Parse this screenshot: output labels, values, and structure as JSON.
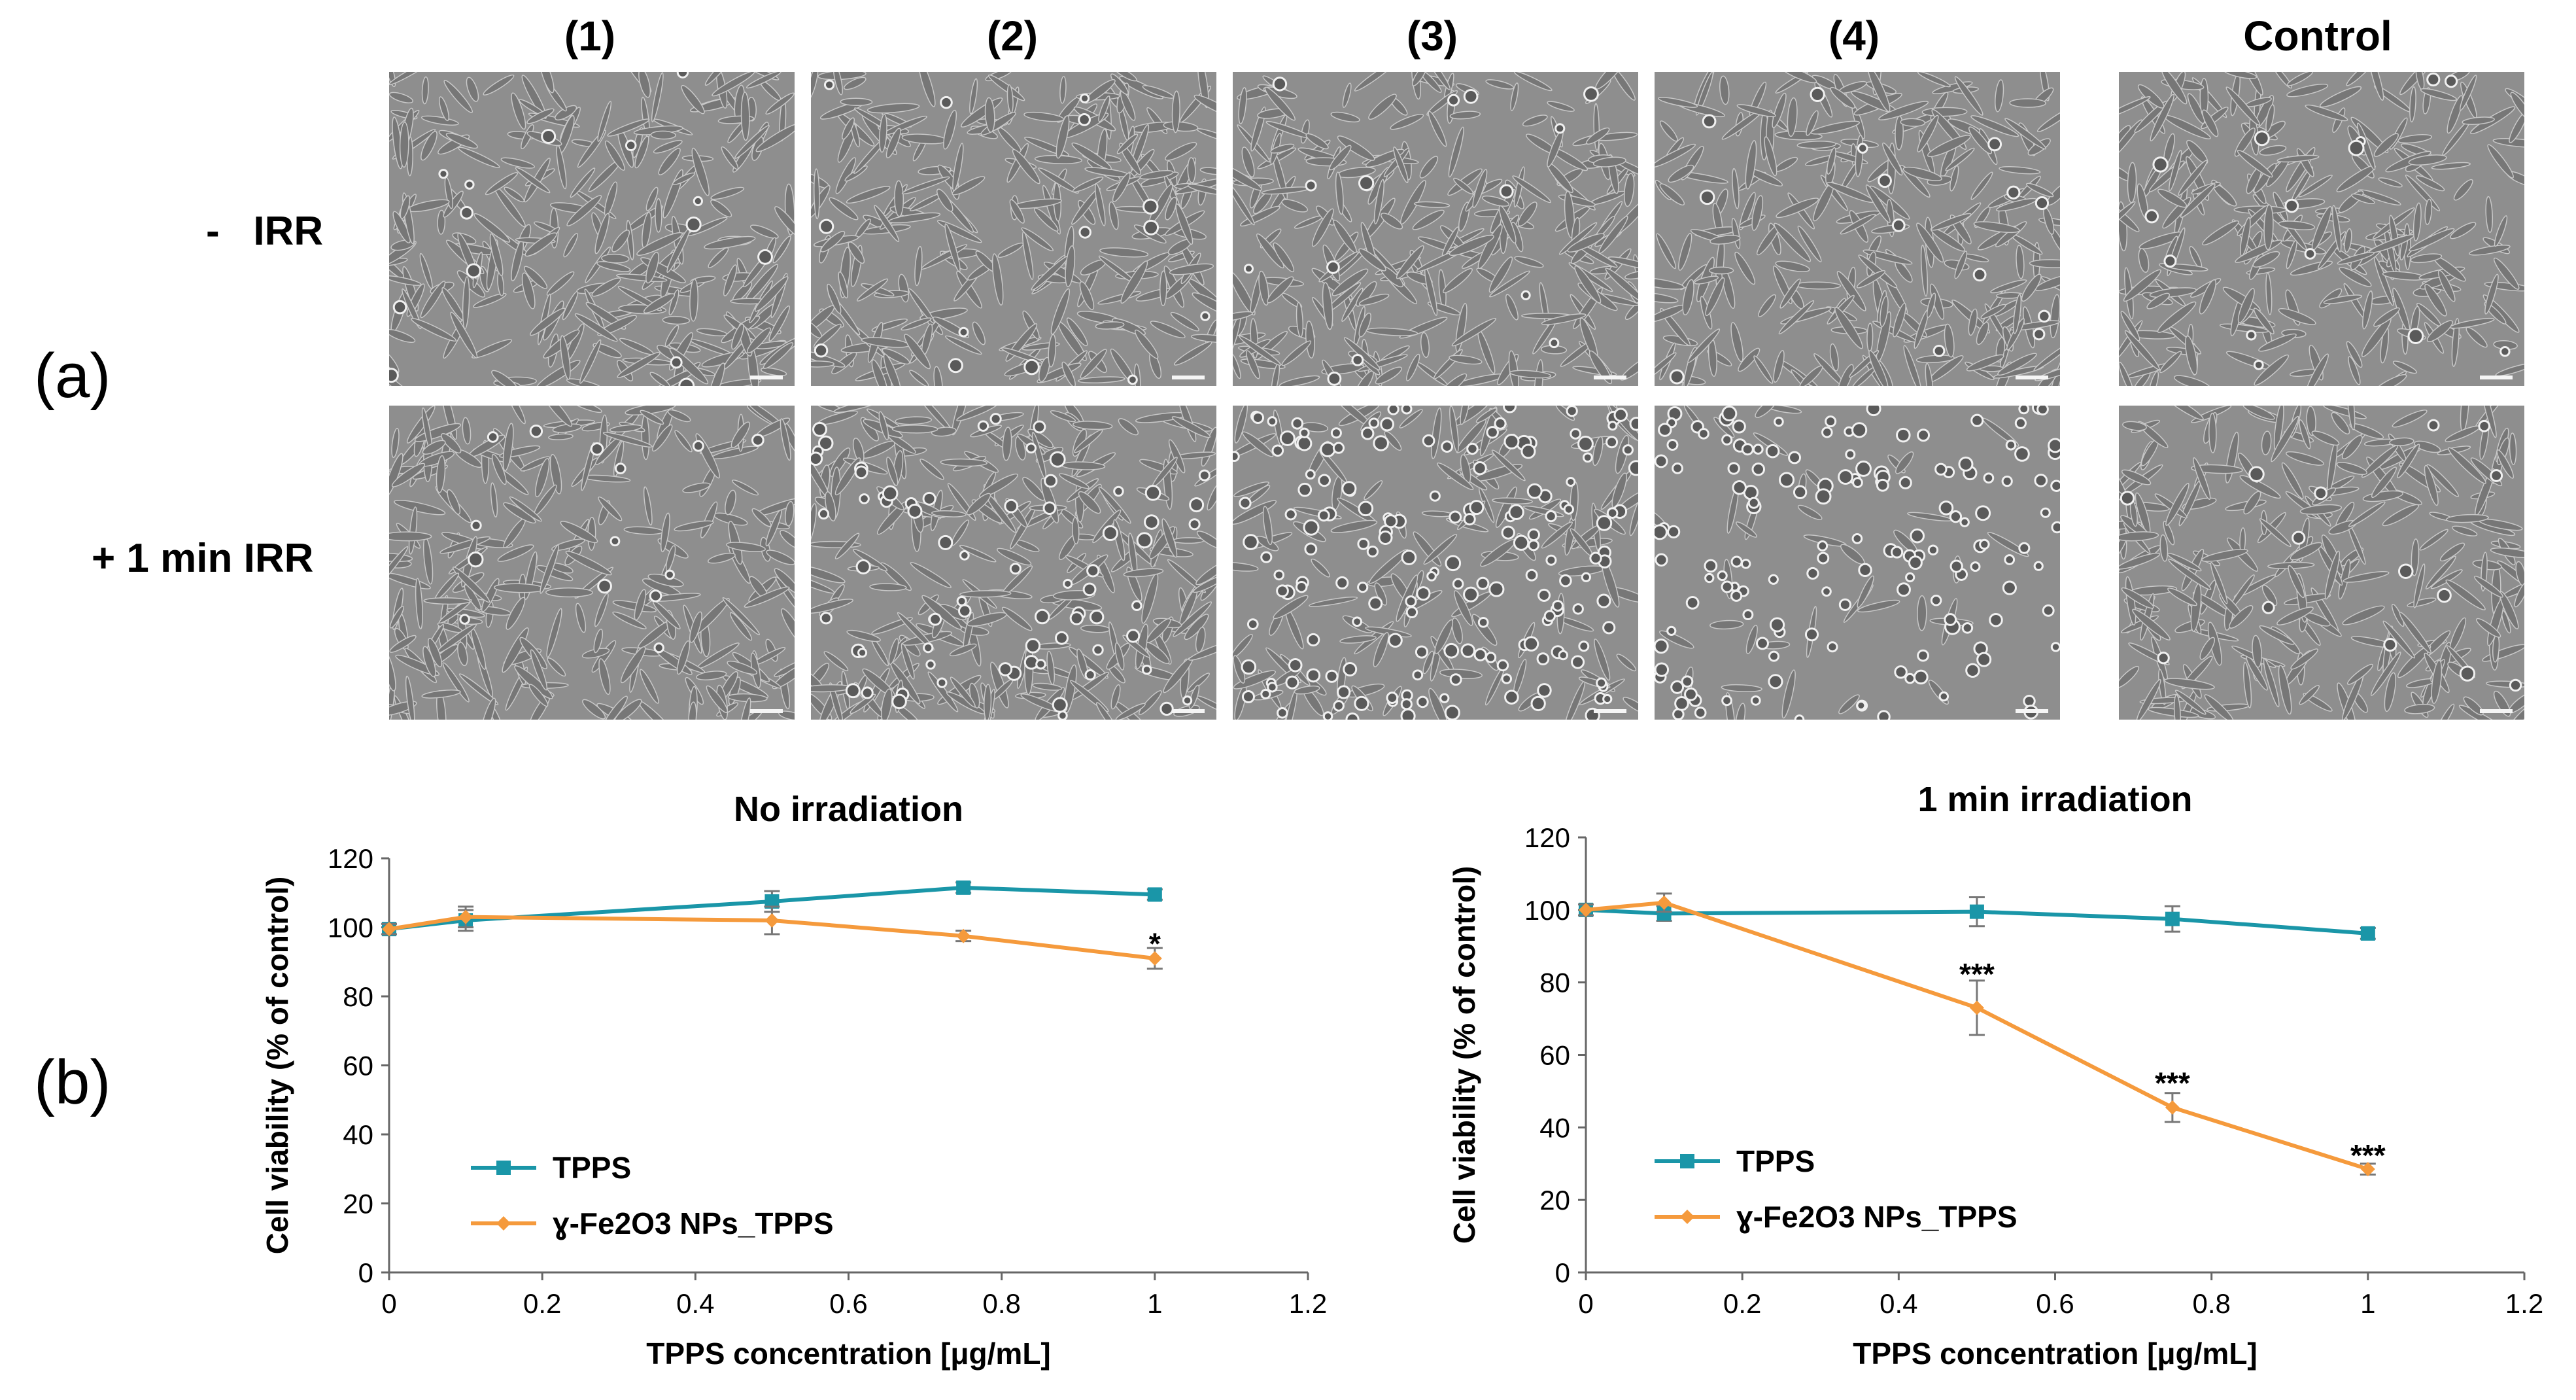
{
  "panel_labels": {
    "a": "(a)",
    "b": "(b)"
  },
  "columns": [
    "(1)",
    "(2)",
    "(3)",
    "(4)",
    "Control"
  ],
  "rows": [
    "-   IRR",
    "+ 1 min IRR"
  ],
  "micrographs": [
    {
      "row": 0,
      "col": 0,
      "description_tag": "dense-cells"
    },
    {
      "row": 0,
      "col": 1,
      "description_tag": "dense-cells"
    },
    {
      "row": 0,
      "col": 2,
      "description_tag": "dense-cells"
    },
    {
      "row": 0,
      "col": 3,
      "description_tag": "dense-cells"
    },
    {
      "row": 0,
      "col": 4,
      "description_tag": "dense-cells"
    },
    {
      "row": 1,
      "col": 0,
      "description_tag": "dense-cells"
    },
    {
      "row": 1,
      "col": 1,
      "description_tag": "some-rounded-cells"
    },
    {
      "row": 1,
      "col": 2,
      "description_tag": "many-rounded-cells"
    },
    {
      "row": 1,
      "col": 3,
      "description_tag": "sparse-rounded-cells"
    },
    {
      "row": 1,
      "col": 4,
      "description_tag": "dense-cells"
    }
  ],
  "colors": {
    "tpps": "#1a96a8",
    "fe_tpps": "#f59a3c",
    "axis": "#666666",
    "error": "#777777"
  },
  "chart_data": [
    {
      "type": "line",
      "title": "No irradiation",
      "xlabel": "TPPS concentration [μg/mL]",
      "ylabel": "Cell viability (% of control)",
      "xlim": [
        0,
        1.2
      ],
      "ylim": [
        0,
        120
      ],
      "xticks": [
        "0",
        "0.2",
        "0.4",
        "0.6",
        "0.8",
        "1",
        "1.2"
      ],
      "yticks": [
        "0",
        "20",
        "40",
        "60",
        "80",
        "100",
        "120"
      ],
      "series": [
        {
          "name": "TPPS",
          "marker": "square",
          "x": [
            0,
            0.1,
            0.5,
            0.75,
            1
          ],
          "y": [
            99.5,
            102,
            107.5,
            111.5,
            109.5
          ],
          "err": [
            1.5,
            3,
            3,
            1.5,
            1.5
          ]
        },
        {
          "name": "ɣ-Fe2O3 NPs_TPPS",
          "marker": "diamond",
          "x": [
            0,
            0.1,
            0.5,
            0.75,
            1
          ],
          "y": [
            99.5,
            103,
            102,
            97.5,
            91
          ],
          "err": [
            1.5,
            3,
            4,
            1.5,
            3
          ]
        }
      ],
      "legend": {
        "entries": [
          "TPPS",
          "ɣ-Fe2O3 NPs_TPPS"
        ],
        "placement": "bottom-left"
      },
      "annotations": [
        {
          "text": "*",
          "x": 1,
          "y": 96
        }
      ]
    },
    {
      "type": "line",
      "title": "1 min irradiation",
      "xlabel": "TPPS concentration [μg/mL]",
      "ylabel": "Cell viability (% of control)",
      "xlim": [
        0,
        1.2
      ],
      "ylim": [
        0,
        120
      ],
      "xticks": [
        "0",
        "0.2",
        "0.4",
        "0.6",
        "0.8",
        "1",
        "1.2"
      ],
      "yticks": [
        "0",
        "20",
        "40",
        "60",
        "80",
        "100",
        "120"
      ],
      "series": [
        {
          "name": "TPPS",
          "marker": "square",
          "x": [
            0,
            0.1,
            0.5,
            0.75,
            1
          ],
          "y": [
            100,
            99,
            99.5,
            97.5,
            93.5
          ],
          "err": [
            1.5,
            2,
            4,
            3.5,
            1.5
          ]
        },
        {
          "name": "ɣ-Fe2O3 NPs_TPPS",
          "marker": "diamond",
          "x": [
            0,
            0.1,
            0.5,
            0.75,
            1
          ],
          "y": [
            100,
            102,
            73,
            45.5,
            28.5
          ],
          "err": [
            1.5,
            2.5,
            7.5,
            4,
            1.5
          ]
        }
      ],
      "legend": {
        "entries": [
          "TPPS",
          "ɣ-Fe2O3 NPs_TPPS"
        ],
        "placement": "bottom-left"
      },
      "annotations": [
        {
          "text": "***",
          "x": 0.5,
          "y": 83
        },
        {
          "text": "***",
          "x": 0.75,
          "y": 53
        },
        {
          "text": "***",
          "x": 1,
          "y": 33
        }
      ]
    }
  ]
}
